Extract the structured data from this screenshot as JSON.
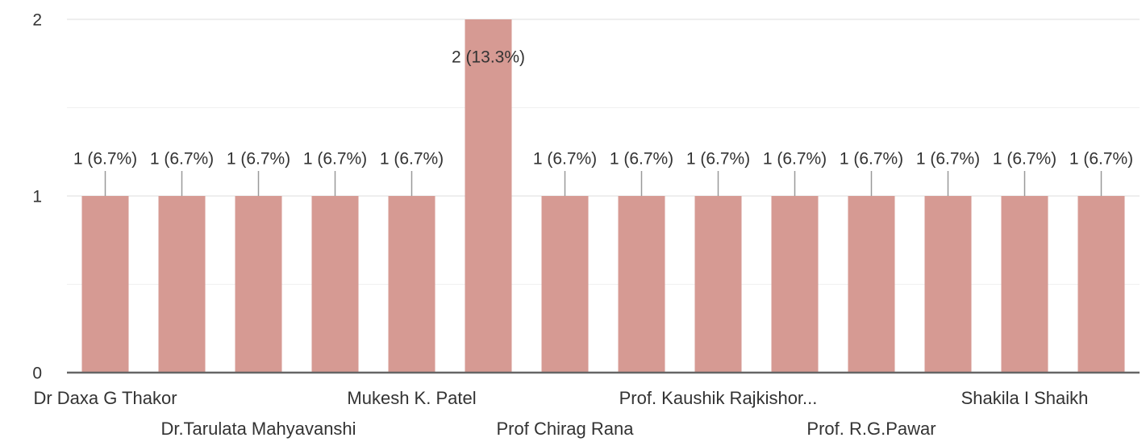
{
  "chart_data": {
    "type": "bar",
    "categories": [
      "Dr Daxa G Thakor",
      null,
      "Dr.Tarulata Mahyavanshi",
      null,
      "Mukesh K. Patel",
      null,
      "Prof Chirag Rana",
      null,
      "Prof. Kaushik Rajkishor...",
      null,
      "Prof. R.G.Pawar",
      null,
      "Shakila I Shaikh",
      null
    ],
    "values": [
      1,
      1,
      1,
      1,
      1,
      2,
      1,
      1,
      1,
      1,
      1,
      1,
      1,
      1
    ],
    "value_labels": [
      "1 (6.7%)",
      "1 (6.7%)",
      "1 (6.7%)",
      "1 (6.7%)",
      "1 (6.7%)",
      "2 (13.3%)",
      "1 (6.7%)",
      "1 (6.7%)",
      "1 (6.7%)",
      "1 (6.7%)",
      "1 (6.7%)",
      "1 (6.7%)",
      "1 (6.7%)",
      "1 (6.7%)"
    ],
    "color": "#d69a93",
    "ylim": [
      0,
      2
    ],
    "yticks": [
      0,
      1,
      2
    ],
    "minor_yticks": [
      0.5,
      1.5
    ],
    "grid": true
  }
}
